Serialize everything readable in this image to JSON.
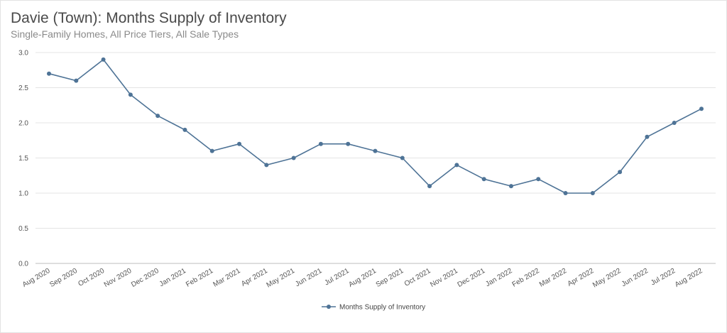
{
  "chart_data": {
    "type": "line",
    "title": "Davie (Town): Months Supply of Inventory",
    "subtitle": "Single-Family Homes, All Price Tiers, All Sale Types",
    "categories": [
      "Aug 2020",
      "Sep 2020",
      "Oct 2020",
      "Nov 2020",
      "Dec 2020",
      "Jan 2021",
      "Feb 2021",
      "Mar 2021",
      "Apr 2021",
      "May 2021",
      "Jun 2021",
      "Jul 2021",
      "Aug 2021",
      "Sep 2021",
      "Oct 2021",
      "Nov 2021",
      "Dec 2021",
      "Jan 2022",
      "Feb 2022",
      "Mar 2022",
      "Apr 2022",
      "May 2022",
      "Jun 2022",
      "Jul 2022",
      "Aug 2022"
    ],
    "series": [
      {
        "name": "Months Supply of Inventory",
        "color": "#4e7396",
        "values": [
          2.7,
          2.6,
          2.9,
          2.4,
          2.1,
          1.9,
          1.6,
          1.7,
          1.4,
          1.5,
          1.7,
          1.7,
          1.6,
          1.5,
          1.1,
          1.4,
          1.2,
          1.1,
          1.2,
          1.0,
          1.0,
          1.3,
          1.8,
          2.0,
          2.2
        ]
      }
    ],
    "ylim": [
      0,
      3.0
    ],
    "yticks": [
      "0.0",
      "0.5",
      "1.0",
      "1.5",
      "2.0",
      "2.5",
      "3.0"
    ],
    "xlabel": "",
    "ylabel": "",
    "grid": true,
    "legend_position": "bottom-center"
  }
}
